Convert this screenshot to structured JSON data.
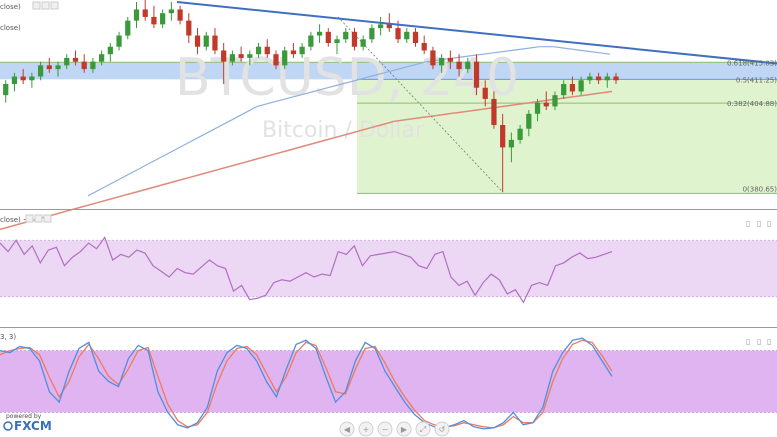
{
  "colors": {
    "up": "#3a9a3a",
    "down": "#c0392b",
    "sma_long": "#e08a7a",
    "sma_short": "#8fb0e0",
    "trendline": "#3f6fc0",
    "fib_blue": "#a9c8f2",
    "fib_green": "#d6efbf",
    "rsi": "#b06fbf",
    "rsi_band": "#ecd8f5",
    "stoch_band": "#dfb4f0",
    "stoch_k": "#4f8fe0",
    "stoch_d": "#f07a5a",
    "brand": "#3a6fb5"
  },
  "watermark": {
    "symbol": "BTCUSD, 240",
    "name": "Bitcoin / Dollar"
  },
  "panes": {
    "price": {
      "label": "close)",
      "label2": "close)"
    },
    "rsi": {
      "label": "close) ~"
    },
    "stoch": {
      "label": "3, 3)"
    }
  },
  "fib_labels": [
    "0.618(415.83)",
    "0.5(411.25)",
    "0.382(404.88)",
    "0(380.65)"
  ],
  "brand": {
    "powered": "powered by",
    "name": "FXCM"
  },
  "controls": [
    "◀",
    "+",
    "−",
    "▶",
    "⤢",
    "↺"
  ],
  "chart_data": {
    "type": "candlestick",
    "title": "BTCUSD, 240",
    "subtitle": "Bitcoin / Dollar",
    "candles": [
      [
        404,
        408,
        402,
        407
      ],
      [
        407,
        411,
        405,
        410
      ],
      [
        410,
        413,
        408,
        412
      ],
      [
        412,
        414,
        410,
        411
      ],
      [
        411,
        413,
        409,
        412
      ],
      [
        412,
        416,
        411,
        415
      ],
      [
        415,
        417,
        413,
        414
      ],
      [
        414,
        416,
        412,
        415
      ],
      [
        415,
        418,
        414,
        417
      ],
      [
        417,
        419,
        415,
        416
      ],
      [
        416,
        418,
        413,
        414
      ],
      [
        414,
        417,
        413,
        416
      ],
      [
        416,
        419,
        415,
        418
      ],
      [
        418,
        421,
        416,
        420
      ],
      [
        420,
        424,
        419,
        423
      ],
      [
        423,
        428,
        422,
        427
      ],
      [
        427,
        432,
        425,
        430
      ],
      [
        430,
        433,
        427,
        428
      ],
      [
        428,
        431,
        425,
        426
      ],
      [
        426,
        430,
        425,
        429
      ],
      [
        429,
        432,
        427,
        430
      ],
      [
        430,
        431,
        426,
        427
      ],
      [
        427,
        429,
        421,
        423
      ],
      [
        423,
        425,
        418,
        420
      ],
      [
        420,
        424,
        419,
        423
      ],
      [
        423,
        425,
        418,
        419
      ],
      [
        419,
        421,
        410,
        416
      ],
      [
        416,
        419,
        415,
        418
      ],
      [
        418,
        420,
        416,
        417
      ],
      [
        417,
        419,
        415,
        418
      ],
      [
        418,
        421,
        417,
        420
      ],
      [
        420,
        422,
        417,
        418
      ],
      [
        418,
        419,
        414,
        415
      ],
      [
        415,
        420,
        414,
        419
      ],
      [
        419,
        421,
        417,
        418
      ],
      [
        418,
        421,
        417,
        420
      ],
      [
        420,
        424,
        419,
        423
      ],
      [
        423,
        426,
        421,
        424
      ],
      [
        424,
        425,
        420,
        421
      ],
      [
        421,
        423,
        418,
        422
      ],
      [
        422,
        425,
        421,
        424
      ],
      [
        424,
        425,
        419,
        420
      ],
      [
        420,
        423,
        419,
        422
      ],
      [
        422,
        426,
        421,
        425
      ],
      [
        425,
        428,
        423,
        426
      ],
      [
        426,
        429,
        424,
        425
      ],
      [
        425,
        427,
        421,
        422
      ],
      [
        422,
        425,
        421,
        424
      ],
      [
        424,
        425,
        420,
        421
      ],
      [
        421,
        423,
        418,
        419
      ],
      [
        419,
        420,
        414,
        415
      ],
      [
        415,
        418,
        413,
        417
      ],
      [
        417,
        419,
        414,
        416
      ],
      [
        416,
        418,
        412,
        414
      ],
      [
        414,
        417,
        413,
        416
      ],
      [
        416,
        418,
        407,
        409
      ],
      [
        409,
        411,
        404,
        406
      ],
      [
        406,
        408,
        398,
        399
      ],
      [
        399,
        402,
        381,
        393
      ],
      [
        393,
        397,
        389,
        395
      ],
      [
        395,
        399,
        394,
        398
      ],
      [
        398,
        403,
        396,
        402
      ],
      [
        402,
        406,
        400,
        405
      ],
      [
        405,
        408,
        403,
        404
      ],
      [
        404,
        408,
        403,
        407
      ],
      [
        407,
        411,
        406,
        410
      ],
      [
        410,
        412,
        407,
        408
      ],
      [
        408,
        412,
        407,
        411
      ],
      [
        411,
        413,
        410,
        412
      ],
      [
        412,
        413,
        410,
        411
      ],
      [
        411,
        413,
        409,
        412
      ],
      [
        412,
        413,
        410,
        411
      ]
    ],
    "sma_long": [
      371,
      372,
      373,
      374,
      375,
      376,
      377,
      378,
      379,
      380,
      381,
      382,
      383,
      384,
      385,
      386,
      387,
      388,
      389,
      390,
      391,
      392,
      393,
      394,
      395,
      396,
      397,
      398,
      399,
      400,
      400.5,
      401,
      401.5,
      402,
      402.5,
      403,
      403.5,
      404,
      404.5,
      405,
      405.5,
      406,
      406.5,
      407,
      407.5,
      408
    ],
    "sma_short": [
      380,
      382,
      384,
      386,
      388,
      390,
      392,
      394,
      396,
      398,
      400,
      402,
      404,
      405,
      406,
      407,
      408,
      409,
      410,
      411,
      412,
      413,
      414,
      415,
      416,
      416.5,
      417,
      417.5,
      418,
      418.5,
      419,
      419.5,
      420,
      420,
      419.5,
      419,
      418.5,
      418
    ],
    "trendline": [
      [
        0,
        432
      ],
      [
        71,
        415.5
      ]
    ],
    "fib_levels": [
      {
        "ratio": "0.618",
        "price": 415.83
      },
      {
        "ratio": "0.5",
        "price": 411.25
      },
      {
        "ratio": "0.382",
        "price": 404.88
      },
      {
        "ratio": "0",
        "price": 380.65
      }
    ],
    "fib_from": {
      "index": 50,
      "price": 423
    },
    "fib_to": {
      "index": 58,
      "price": 381
    },
    "ylim": [
      377,
      432
    ],
    "rsi": {
      "values": [
        68,
        62,
        70,
        60,
        66,
        54,
        63,
        65,
        52,
        58,
        62,
        68,
        64,
        72,
        56,
        60,
        58,
        63,
        61,
        52,
        48,
        44,
        50,
        47,
        46,
        51,
        56,
        52,
        50,
        34,
        38,
        28,
        29,
        31,
        40,
        42,
        41,
        44,
        47,
        44,
        46,
        45,
        62,
        60,
        66,
        52,
        59,
        60,
        61,
        62,
        60,
        58,
        52,
        50,
        60,
        62,
        44,
        38,
        41,
        31,
        40,
        46,
        42,
        32,
        35,
        26,
        38,
        40,
        38,
        52,
        54,
        58,
        61,
        57,
        58,
        60,
        62
      ],
      "ylim": [
        10,
        90
      ],
      "band": [
        30,
        70
      ]
    },
    "stoch": {
      "k": [
        80,
        78,
        84,
        82,
        70,
        40,
        30,
        60,
        82,
        88,
        60,
        50,
        45,
        72,
        85,
        80,
        40,
        20,
        8,
        5,
        10,
        25,
        60,
        78,
        85,
        82,
        70,
        50,
        35,
        62,
        86,
        90,
        82,
        55,
        30,
        40,
        70,
        88,
        82,
        60,
        45,
        30,
        18,
        10,
        6,
        5,
        8,
        12,
        6,
        4,
        5,
        10,
        20,
        8,
        10,
        25,
        60,
        78,
        90,
        92,
        85,
        70,
        55
      ],
      "d": [
        76,
        80,
        82,
        83,
        76,
        54,
        35,
        50,
        74,
        86,
        72,
        55,
        47,
        62,
        80,
        83,
        55,
        28,
        12,
        6,
        8,
        20,
        48,
        70,
        82,
        84,
        76,
        58,
        40,
        55,
        78,
        88,
        85,
        64,
        40,
        38,
        62,
        82,
        84,
        68,
        50,
        35,
        22,
        12,
        8,
        6,
        7,
        10,
        8,
        6,
        5,
        8,
        16,
        10,
        10,
        20,
        50,
        72,
        86,
        90,
        88,
        75,
        60
      ],
      "ylim": [
        0,
        100
      ],
      "band": [
        20,
        80
      ]
    }
  }
}
